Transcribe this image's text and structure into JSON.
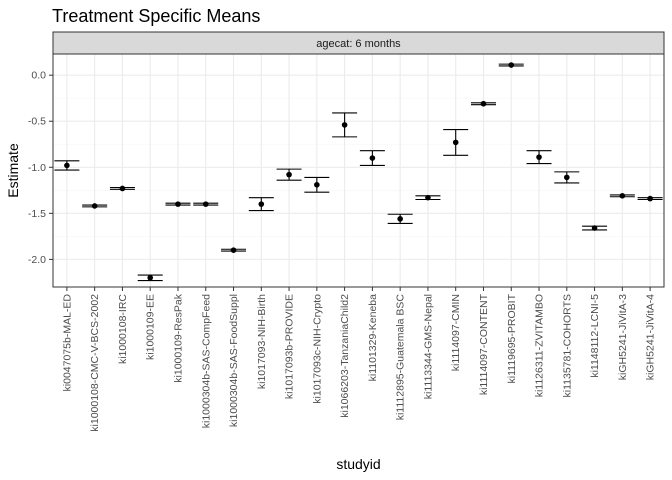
{
  "chart_data": {
    "type": "scatter",
    "title": "Treatment Specific Means",
    "facet_label": "agecat: 6 months",
    "xlabel": "studyid",
    "ylabel": "Estimate",
    "ylim": [
      -2.3,
      0.23
    ],
    "yticks": [
      0.0,
      -0.5,
      -1.0,
      -1.5,
      -2.0
    ],
    "ytick_labels": [
      "0.0",
      "-0.5",
      "-1.0",
      "-1.5",
      "-2.0"
    ],
    "grid": true,
    "categories": [
      "ki0047075b-MAL-ED",
      "ki1000108-CMC-V-BCS-2002",
      "ki1000108-IRC",
      "ki1000109-EE",
      "ki1000109-ResPak",
      "ki1000304b-SAS-CompFeed",
      "ki1000304b-SAS-FoodSuppl",
      "ki1017093-NIH-Birth",
      "ki1017093b-PROVIDE",
      "ki1017093c-NIH-Crypto",
      "ki1066203-TanzaniaChild2",
      "ki1101329-Keneba",
      "ki1112895-Guatemala BSC",
      "ki1113344-GMS-Nepal",
      "ki1114097-CMIN",
      "ki1114097-CONTENT",
      "ki1119695-PROBIT",
      "ki1126311-ZVITAMBO",
      "ki1135781-COHORTS",
      "ki1148112-LCNI-5",
      "kiGH5241-JiVitA-3",
      "kiGH5241-JiVitA-4"
    ],
    "estimate": [
      -0.98,
      -1.42,
      -1.23,
      -2.2,
      -1.4,
      -1.4,
      -1.9,
      -1.4,
      -1.08,
      -1.19,
      -0.54,
      -0.9,
      -1.56,
      -1.33,
      -0.73,
      -0.31,
      0.11,
      -0.89,
      -1.11,
      -1.66,
      -1.31,
      -1.34
    ],
    "ci_lower": [
      -1.03,
      -1.43,
      -1.24,
      -2.23,
      -1.41,
      -1.41,
      -1.91,
      -1.47,
      -1.14,
      -1.27,
      -0.67,
      -0.98,
      -1.61,
      -1.35,
      -0.87,
      -0.32,
      0.1,
      -0.96,
      -1.17,
      -1.68,
      -1.32,
      -1.35
    ],
    "ci_upper": [
      -0.93,
      -1.41,
      -1.22,
      -2.17,
      -1.39,
      -1.39,
      -1.89,
      -1.33,
      -1.02,
      -1.11,
      -0.41,
      -0.82,
      -1.51,
      -1.31,
      -0.59,
      -0.3,
      0.12,
      -0.82,
      -1.05,
      -1.64,
      -1.3,
      -1.33
    ],
    "colors": {
      "panel_background": "#ffffff",
      "panel_border": "#333333",
      "grid_major": "#ebebeb",
      "grid_minor": "#f5f5f5",
      "strip_background": "#d9d9d9",
      "point": "#000000",
      "errorbar": "#000000"
    }
  }
}
